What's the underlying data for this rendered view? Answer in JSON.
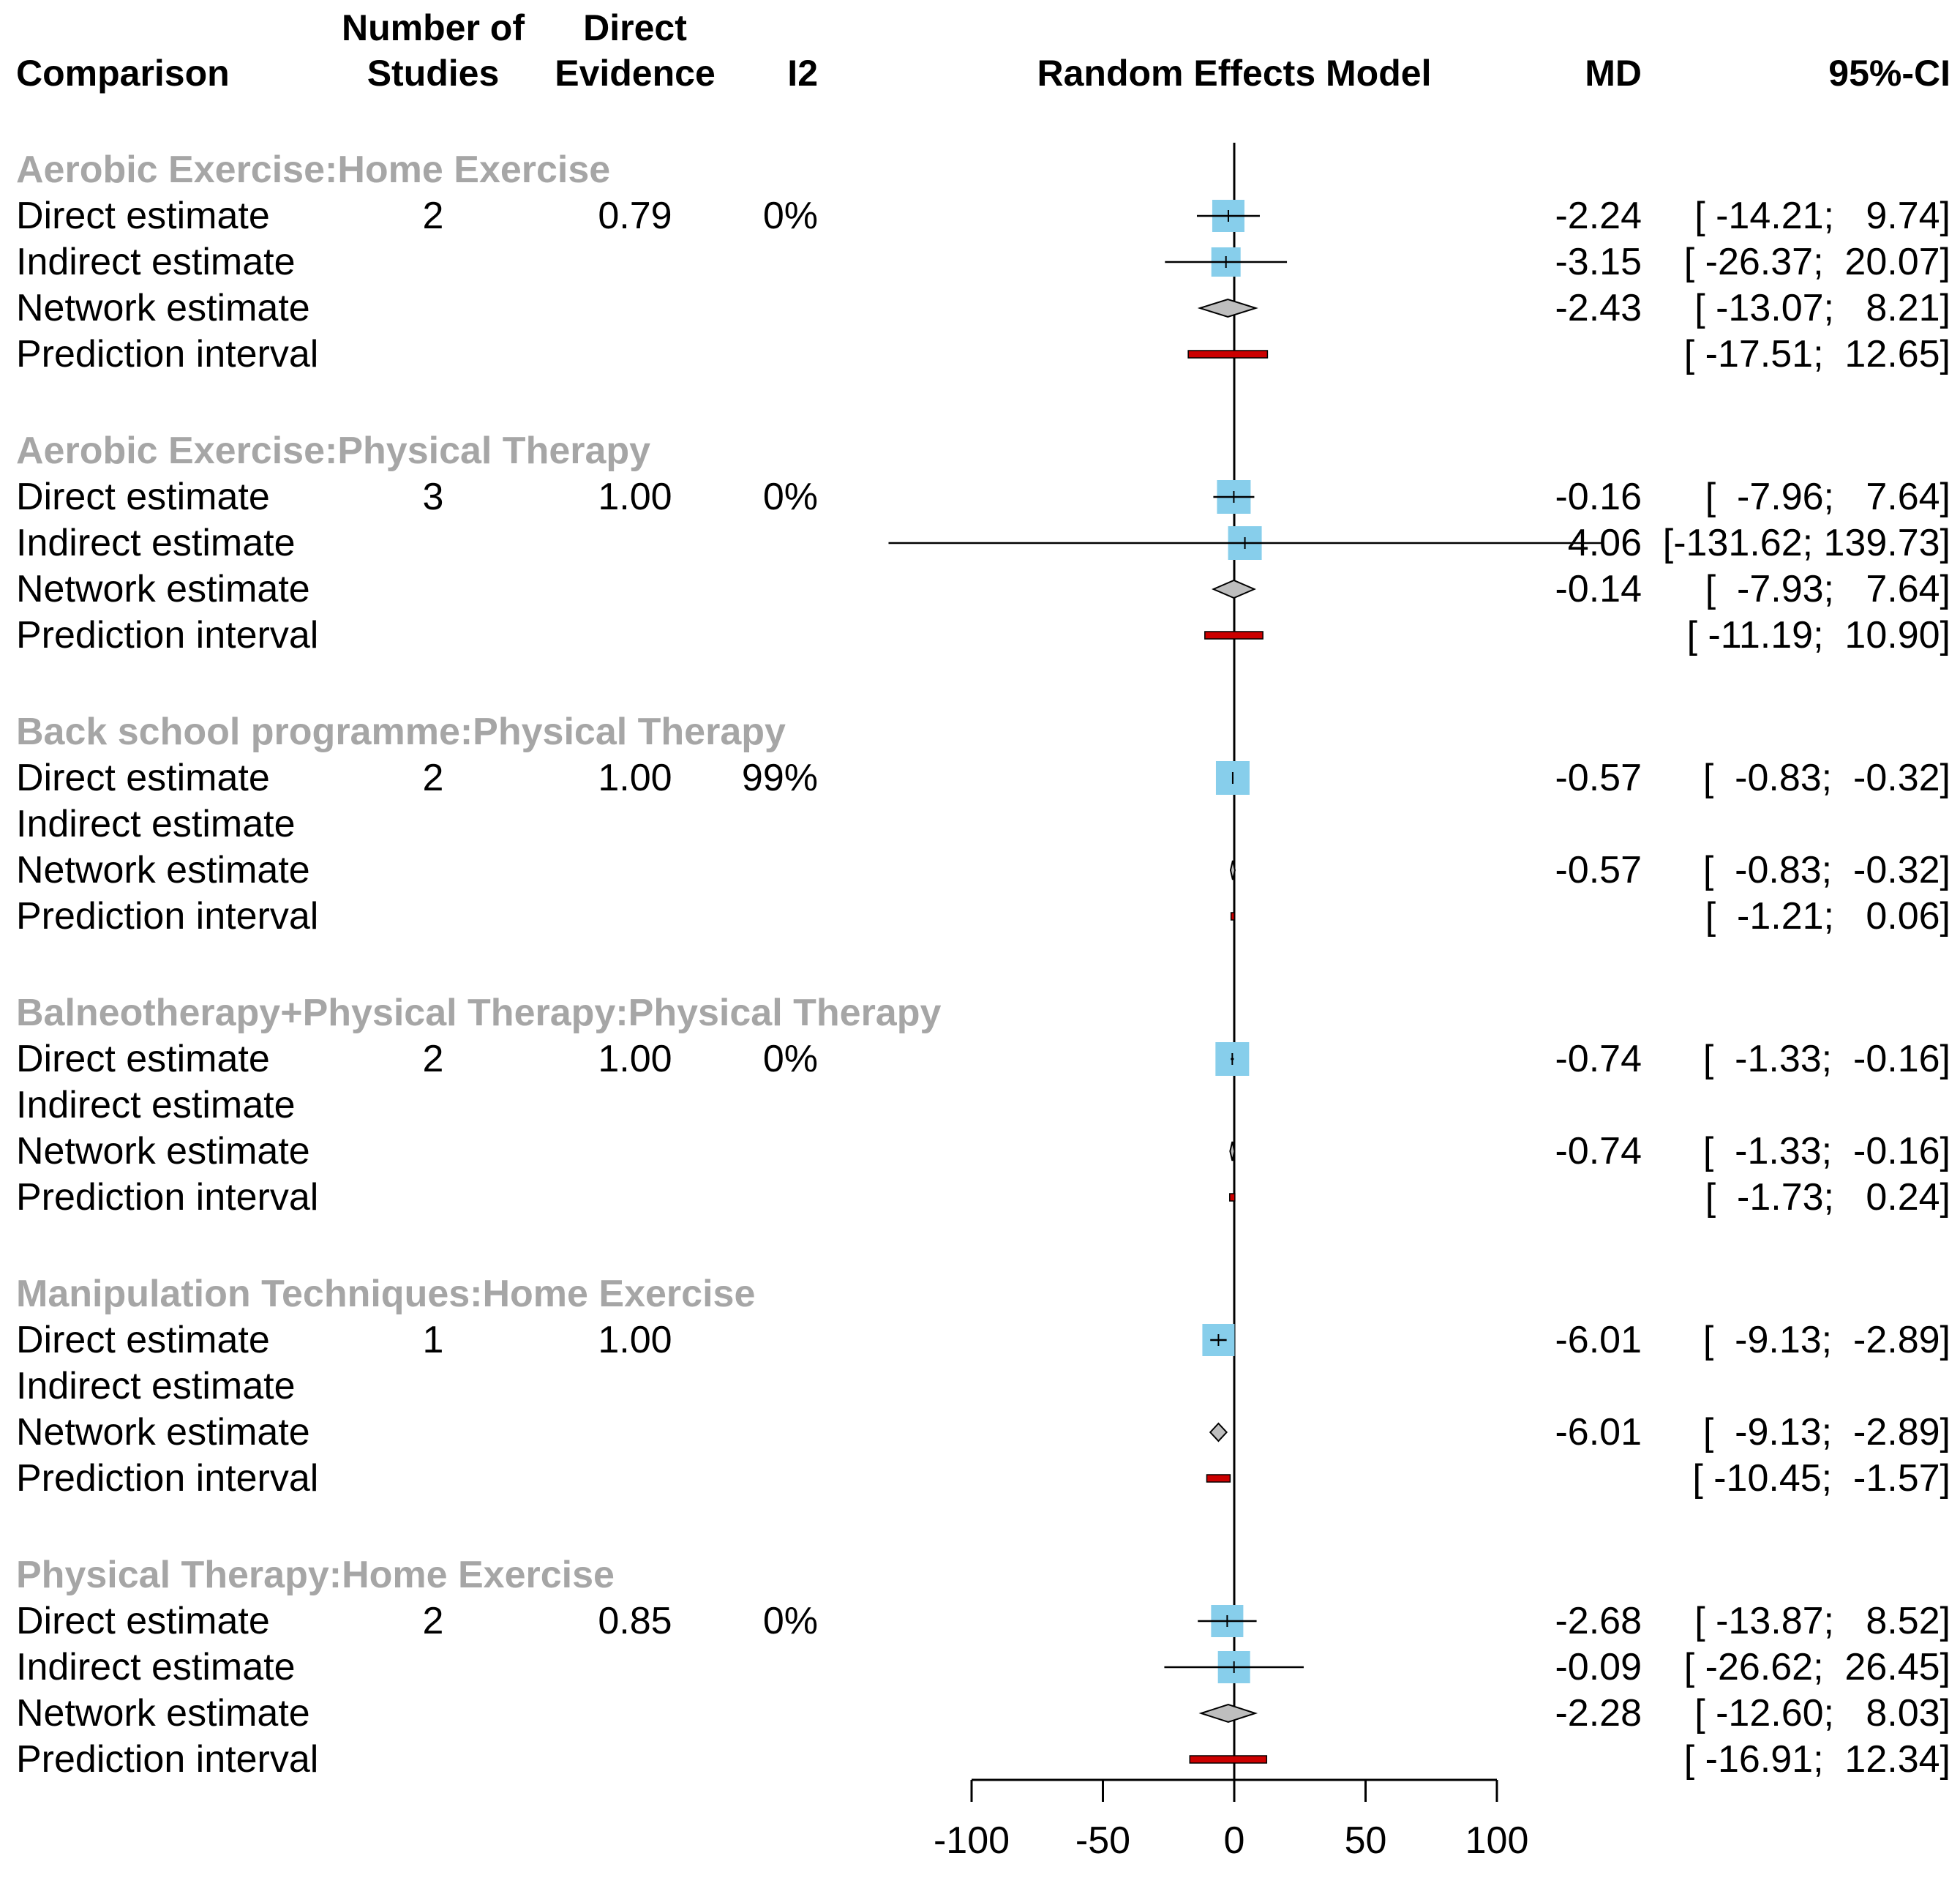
{
  "chart_data": {
    "type": "forest",
    "title": "",
    "headers": {
      "comparison": "Comparison",
      "n_studies": [
        "Number of",
        "Studies"
      ],
      "direct_evidence": [
        "Direct",
        "Evidence"
      ],
      "i2": "I2",
      "model": "Random Effects Model",
      "md": "MD",
      "ci": "95%-CI"
    },
    "xlim": [
      -100,
      100
    ],
    "xticks": [
      -100,
      -50,
      0,
      50,
      100
    ],
    "xtick_labels": [
      "-100",
      "-50",
      "0",
      "50",
      "100"
    ],
    "null_value": 0,
    "colors": {
      "direct_box": "#87ceeb",
      "network_diamond": "#bebebe",
      "prediction_bar": "#cc0000",
      "group_label": "#a6a6a6"
    },
    "groups": [
      {
        "label": "Aerobic Exercise:Home Exercise",
        "rows": [
          {
            "label": "Direct estimate",
            "kind": "box",
            "n_studies": "2",
            "direct_evidence": "0.79",
            "i2": "0%",
            "md": -2.24,
            "lower": -14.21,
            "upper": 9.74,
            "md_text": "-2.24",
            "ci_text": "[ -14.21;   9.74]",
            "box_size": 44
          },
          {
            "label": "Indirect estimate",
            "kind": "box",
            "md": -3.15,
            "lower": -26.37,
            "upper": 20.07,
            "md_text": "-3.15",
            "ci_text": "[ -26.37;  20.07]",
            "box_size": 40
          },
          {
            "label": "Network estimate",
            "kind": "diamond",
            "md": -2.43,
            "lower": -13.07,
            "upper": 8.21,
            "md_text": "-2.43",
            "ci_text": "[ -13.07;   8.21]"
          },
          {
            "label": "Prediction interval",
            "kind": "prediction",
            "lower": -17.51,
            "upper": 12.65,
            "ci_text": "[ -17.51;  12.65]"
          }
        ]
      },
      {
        "label": "Aerobic Exercise:Physical Therapy",
        "rows": [
          {
            "label": "Direct estimate",
            "kind": "box",
            "n_studies": "3",
            "direct_evidence": "1.00",
            "i2": "0%",
            "md": -0.16,
            "lower": -7.96,
            "upper": 7.64,
            "md_text": "-0.16",
            "ci_text": "[  -7.96;   7.64]",
            "box_size": 46
          },
          {
            "label": "Indirect estimate",
            "kind": "box",
            "md": 4.06,
            "lower": -131.62,
            "upper": 139.73,
            "md_text": "4.06",
            "ci_text": "[-131.62; 139.73]",
            "box_size": 46
          },
          {
            "label": "Network estimate",
            "kind": "diamond",
            "md": -0.14,
            "lower": -7.93,
            "upper": 7.64,
            "md_text": "-0.14",
            "ci_text": "[  -7.93;   7.64]"
          },
          {
            "label": "Prediction interval",
            "kind": "prediction",
            "lower": -11.19,
            "upper": 10.9,
            "ci_text": "[ -11.19;  10.90]"
          }
        ]
      },
      {
        "label": "Back school programme:Physical Therapy",
        "rows": [
          {
            "label": "Direct estimate",
            "kind": "box",
            "n_studies": "2",
            "direct_evidence": "1.00",
            "i2": "99%",
            "md": -0.57,
            "lower": -0.83,
            "upper": -0.32,
            "md_text": "-0.57",
            "ci_text": "[  -0.83;  -0.32]",
            "box_size": 46
          },
          {
            "label": "Indirect estimate",
            "kind": "none"
          },
          {
            "label": "Network estimate",
            "kind": "diamond",
            "md": -0.57,
            "lower": -0.83,
            "upper": -0.32,
            "md_text": "-0.57",
            "ci_text": "[  -0.83;  -0.32]"
          },
          {
            "label": "Prediction interval",
            "kind": "prediction",
            "lower": -1.21,
            "upper": 0.06,
            "ci_text": "[  -1.21;   0.06]"
          }
        ]
      },
      {
        "label": "Balneotherapy+Physical Therapy:Physical Therapy",
        "rows": [
          {
            "label": "Direct estimate",
            "kind": "box",
            "n_studies": "2",
            "direct_evidence": "1.00",
            "i2": "0%",
            "md": -0.74,
            "lower": -1.33,
            "upper": -0.16,
            "md_text": "-0.74",
            "ci_text": "[  -1.33;  -0.16]",
            "box_size": 46
          },
          {
            "label": "Indirect estimate",
            "kind": "none"
          },
          {
            "label": "Network estimate",
            "kind": "diamond",
            "md": -0.74,
            "lower": -1.33,
            "upper": -0.16,
            "md_text": "-0.74",
            "ci_text": "[  -1.33;  -0.16]"
          },
          {
            "label": "Prediction interval",
            "kind": "prediction",
            "lower": -1.73,
            "upper": 0.24,
            "ci_text": "[  -1.73;   0.24]"
          }
        ]
      },
      {
        "label": "Manipulation Techniques:Home Exercise",
        "rows": [
          {
            "label": "Direct estimate",
            "kind": "box",
            "n_studies": "1",
            "direct_evidence": "1.00",
            "i2": "",
            "md": -6.01,
            "lower": -9.13,
            "upper": -2.89,
            "md_text": "-6.01",
            "ci_text": "[  -9.13;  -2.89]",
            "box_size": 44
          },
          {
            "label": "Indirect estimate",
            "kind": "none"
          },
          {
            "label": "Network estimate",
            "kind": "diamond",
            "md": -6.01,
            "lower": -9.13,
            "upper": -2.89,
            "md_text": "-6.01",
            "ci_text": "[  -9.13;  -2.89]"
          },
          {
            "label": "Prediction interval",
            "kind": "prediction",
            "lower": -10.45,
            "upper": -1.57,
            "ci_text": "[ -10.45;  -1.57]"
          }
        ]
      },
      {
        "label": "Physical Therapy:Home Exercise",
        "rows": [
          {
            "label": "Direct estimate",
            "kind": "box",
            "n_studies": "2",
            "direct_evidence": "0.85",
            "i2": "0%",
            "md": -2.68,
            "lower": -13.87,
            "upper": 8.52,
            "md_text": "-2.68",
            "ci_text": "[ -13.87;   8.52]",
            "box_size": 44
          },
          {
            "label": "Indirect estimate",
            "kind": "box",
            "md": -0.09,
            "lower": -26.62,
            "upper": 26.45,
            "md_text": "-0.09",
            "ci_text": "[ -26.62;  26.45]",
            "box_size": 44
          },
          {
            "label": "Network estimate",
            "kind": "diamond",
            "md": -2.28,
            "lower": -12.6,
            "upper": 8.03,
            "md_text": "-2.28",
            "ci_text": "[ -12.60;   8.03]"
          },
          {
            "label": "Prediction interval",
            "kind": "prediction",
            "lower": -16.91,
            "upper": 12.34,
            "ci_text": "[ -16.91;  12.34]"
          }
        ]
      }
    ]
  }
}
